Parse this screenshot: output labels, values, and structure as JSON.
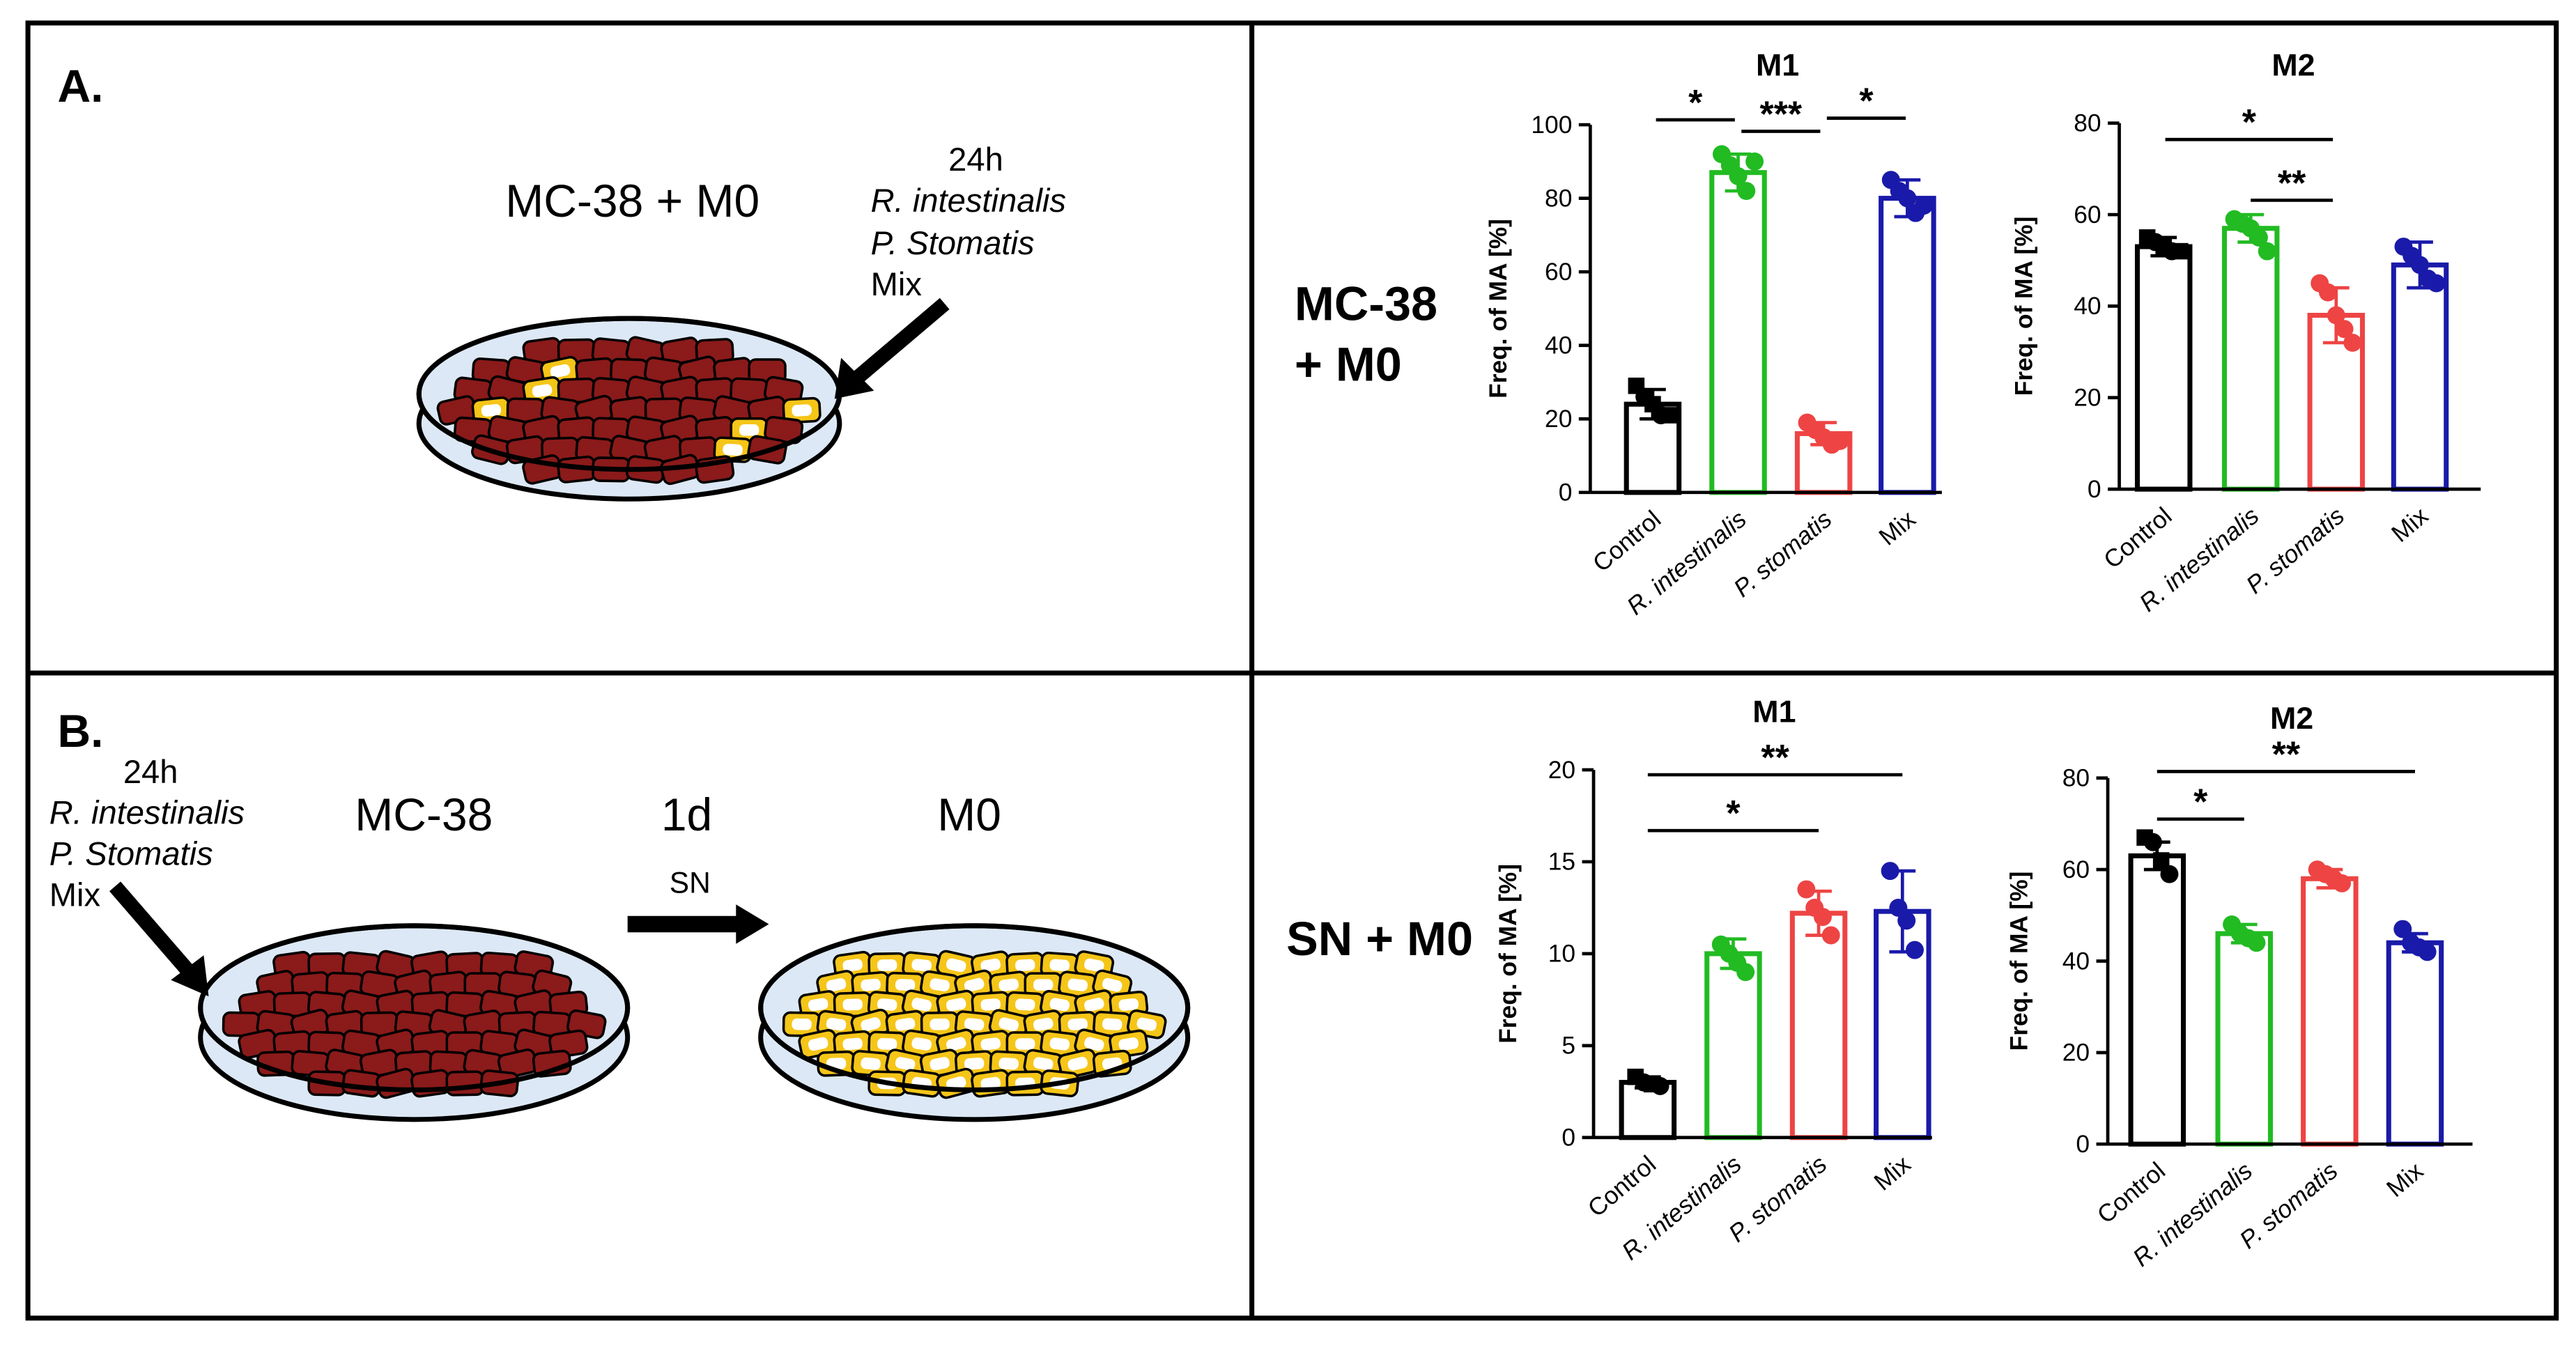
{
  "figure": {
    "panel_a": {
      "label": "A.",
      "dish_label": "MC-38 + M0",
      "treatment": {
        "time": "24h",
        "items": [
          "R. intestinalis",
          "P. Stomatis",
          "Mix"
        ]
      }
    },
    "panel_b": {
      "label": "B.",
      "treatment": {
        "time": "24h",
        "items": [
          "R. intestinalis",
          "P. Stomatis",
          "Mix"
        ]
      },
      "dish1_label": "MC-38",
      "transfer_time": "1d",
      "transfer_label": "SN",
      "dish2_label": "M0"
    },
    "row_labels": [
      [
        "MC-38",
        "+ M0"
      ],
      [
        "SN + M0"
      ]
    ]
  },
  "chart_data": [
    {
      "type": "bar",
      "title": "M1",
      "y_label": "Freq. of MA [%]",
      "categories": [
        "Control",
        "R. intestinalis",
        "P. stomatis",
        "Mix"
      ],
      "colors": [
        "#000000",
        "#22bb22",
        "#ee4444",
        "#1a1aaa"
      ],
      "values": [
        24,
        87,
        16,
        80
      ],
      "errors": [
        4,
        5,
        3,
        5
      ],
      "points": [
        [
          29,
          26,
          24,
          21,
          21
        ],
        [
          92,
          89,
          86,
          82,
          90
        ],
        [
          19,
          17,
          15,
          13,
          14
        ],
        [
          85,
          82,
          80,
          76,
          78
        ]
      ],
      "ylim": [
        0,
        100
      ],
      "yticks": [
        0,
        20,
        40,
        60,
        80,
        100
      ],
      "annotations": [
        "*",
        "***",
        "*"
      ]
    },
    {
      "type": "bar",
      "title": "M2",
      "y_label": "Freq. of MA [%]",
      "categories": [
        "Control",
        "R. intestinalis",
        "P. stomatis",
        "Mix"
      ],
      "colors": [
        "#000000",
        "#22bb22",
        "#ee4444",
        "#1a1aaa"
      ],
      "values": [
        53,
        57,
        38,
        49
      ],
      "errors": [
        2,
        3,
        6,
        5
      ],
      "points": [
        [
          55,
          54,
          53,
          52,
          52
        ],
        [
          59,
          58,
          57,
          55,
          52
        ],
        [
          45,
          43,
          38,
          35,
          32
        ],
        [
          53,
          51,
          49,
          46,
          45
        ]
      ],
      "ylim": [
        0,
        80
      ],
      "yticks": [
        0,
        20,
        40,
        60,
        80
      ],
      "annotations": [
        "*",
        "**"
      ]
    },
    {
      "type": "bar",
      "title": "M1",
      "y_label": "Freq. of MA [%]",
      "categories": [
        "Control",
        "R. intestinalis",
        "P. stomatis",
        "Mix"
      ],
      "colors": [
        "#000000",
        "#22bb22",
        "#ee4444",
        "#1a1aaa"
      ],
      "values": [
        3,
        10,
        12.2,
        12.3
      ],
      "errors": [
        0.3,
        0.8,
        1.2,
        2.2
      ],
      "points": [
        [
          3.3,
          3,
          2.9,
          2.8
        ],
        [
          10.5,
          10,
          9.5,
          9
        ],
        [
          13.5,
          12.5,
          12,
          11
        ],
        [
          14.5,
          12.5,
          11.8,
          10.2
        ]
      ],
      "ylim": [
        0,
        20
      ],
      "yticks": [
        0,
        5,
        10,
        15,
        20
      ],
      "annotations": [
        "**",
        "*"
      ]
    },
    {
      "type": "bar",
      "title": "M2",
      "y_label": "Freq. of MA [%]",
      "categories": [
        "Control",
        "R. intestinalis",
        "P. stomatis",
        "Mix"
      ],
      "colors": [
        "#000000",
        "#22bb22",
        "#ee4444",
        "#1a1aaa"
      ],
      "values": [
        63,
        46,
        58,
        44
      ],
      "errors": [
        3,
        2,
        2,
        2
      ],
      "points": [
        [
          67,
          66,
          62,
          59
        ],
        [
          48,
          46,
          45,
          44
        ],
        [
          60,
          59,
          58,
          57
        ],
        [
          47,
          44,
          43,
          42
        ]
      ],
      "ylim": [
        0,
        80
      ],
      "yticks": [
        0,
        20,
        40,
        60,
        80
      ],
      "annotations": [
        "**",
        "*"
      ]
    }
  ]
}
